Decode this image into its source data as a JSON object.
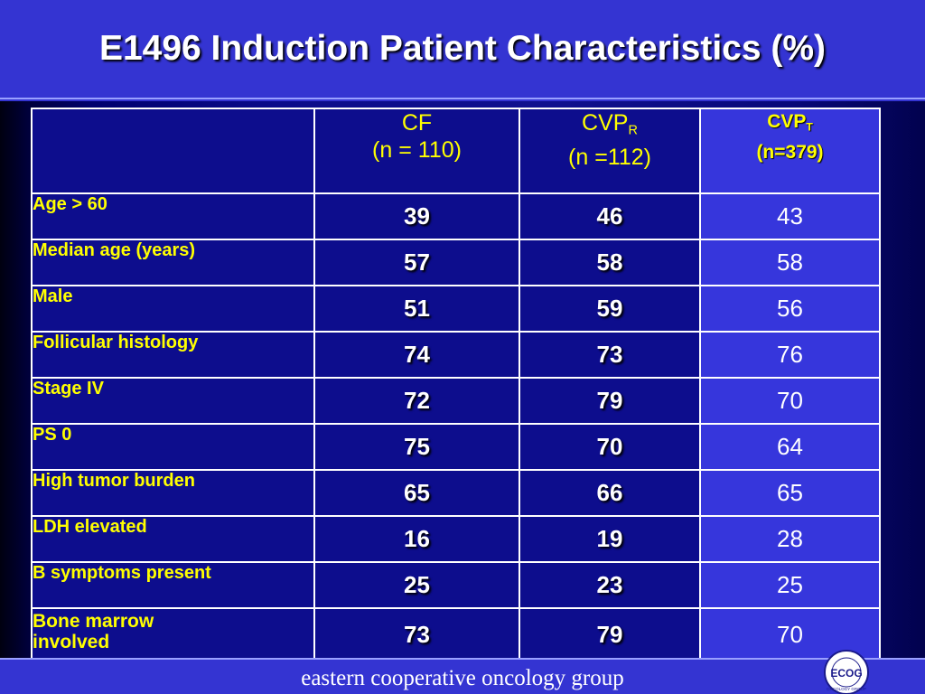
{
  "slide": {
    "title": "E1496 Induction Patient Characteristics (%)",
    "footer": "eastern cooperative oncology group"
  },
  "logo": {
    "text": "ECOG",
    "subtext": "ONCOLOGY GROUP"
  },
  "table": {
    "headers": [
      {
        "name": "CF",
        "sub": "",
        "n": "(n = 110)"
      },
      {
        "name": "CVP",
        "sub": "R",
        "n": "(n =112)"
      },
      {
        "name": "CVP",
        "sub": "T",
        "n": "(n=379)"
      }
    ],
    "rows": [
      {
        "label": "Age > 60",
        "cf": "39",
        "cvpr": "46",
        "cvpt": "43"
      },
      {
        "label": "Median age (years)",
        "cf": "57",
        "cvpr": "58",
        "cvpt": "58"
      },
      {
        "label": "Male",
        "cf": "51",
        "cvpr": "59",
        "cvpt": "56"
      },
      {
        "label": "Follicular histology",
        "cf": "74",
        "cvpr": "73",
        "cvpt": "76"
      },
      {
        "label": "Stage IV",
        "cf": "72",
        "cvpr": "79",
        "cvpt": "70"
      },
      {
        "label": "PS 0",
        "cf": "75",
        "cvpr": "70",
        "cvpt": "64"
      },
      {
        "label": "High tumor burden",
        "cf": "65",
        "cvpr": "66",
        "cvpt": "65"
      },
      {
        "label": "LDH elevated",
        "cf": "16",
        "cvpr": "19",
        "cvpt": "28"
      },
      {
        "label": "B symptoms present",
        "cf": "25",
        "cvpr": "23",
        "cvpt": "25"
      },
      {
        "label_lines": [
          "Bone marrow",
          "involved"
        ],
        "cf": "73",
        "cvpr": "79",
        "cvpt": "70"
      }
    ]
  }
}
